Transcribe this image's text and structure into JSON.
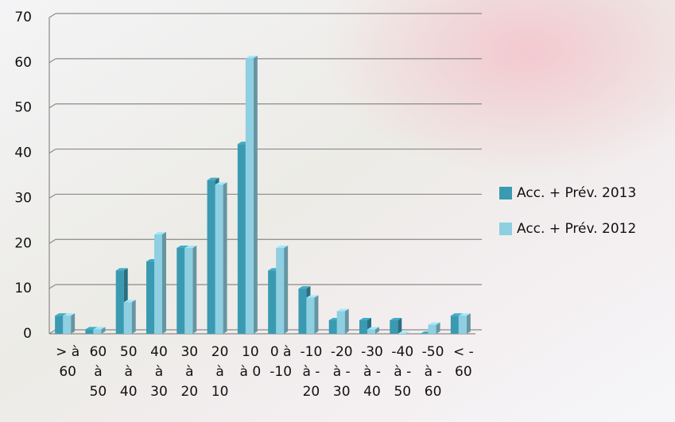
{
  "chart_data": {
    "type": "bar",
    "categories": [
      "> à 60",
      "60 à 50",
      "50 à 40",
      "40 à 30",
      "30 à 20",
      "20 à 10",
      "10 à 0",
      "0 à -10",
      "-10 à -20",
      "-20 à -30",
      "-30 à -40",
      "-40 à -50",
      "-50 à -60",
      "< -60"
    ],
    "series": [
      {
        "name": "Acc. + Prév. 2013",
        "color": "#3a9ab2",
        "values": [
          4,
          1,
          14,
          16,
          19,
          34,
          42,
          14,
          10,
          3,
          3,
          3,
          0,
          4
        ]
      },
      {
        "name": "Acc. + Prév. 2012",
        "color": "#8ecfe1",
        "values": [
          4,
          1,
          7,
          22,
          19,
          33,
          61,
          19,
          8,
          5,
          1,
          0,
          2,
          4
        ]
      }
    ],
    "ylim": [
      0,
      70
    ],
    "yticks": [
      0,
      10,
      20,
      30,
      40,
      50,
      60,
      70
    ],
    "grid": true,
    "legend": "right"
  }
}
